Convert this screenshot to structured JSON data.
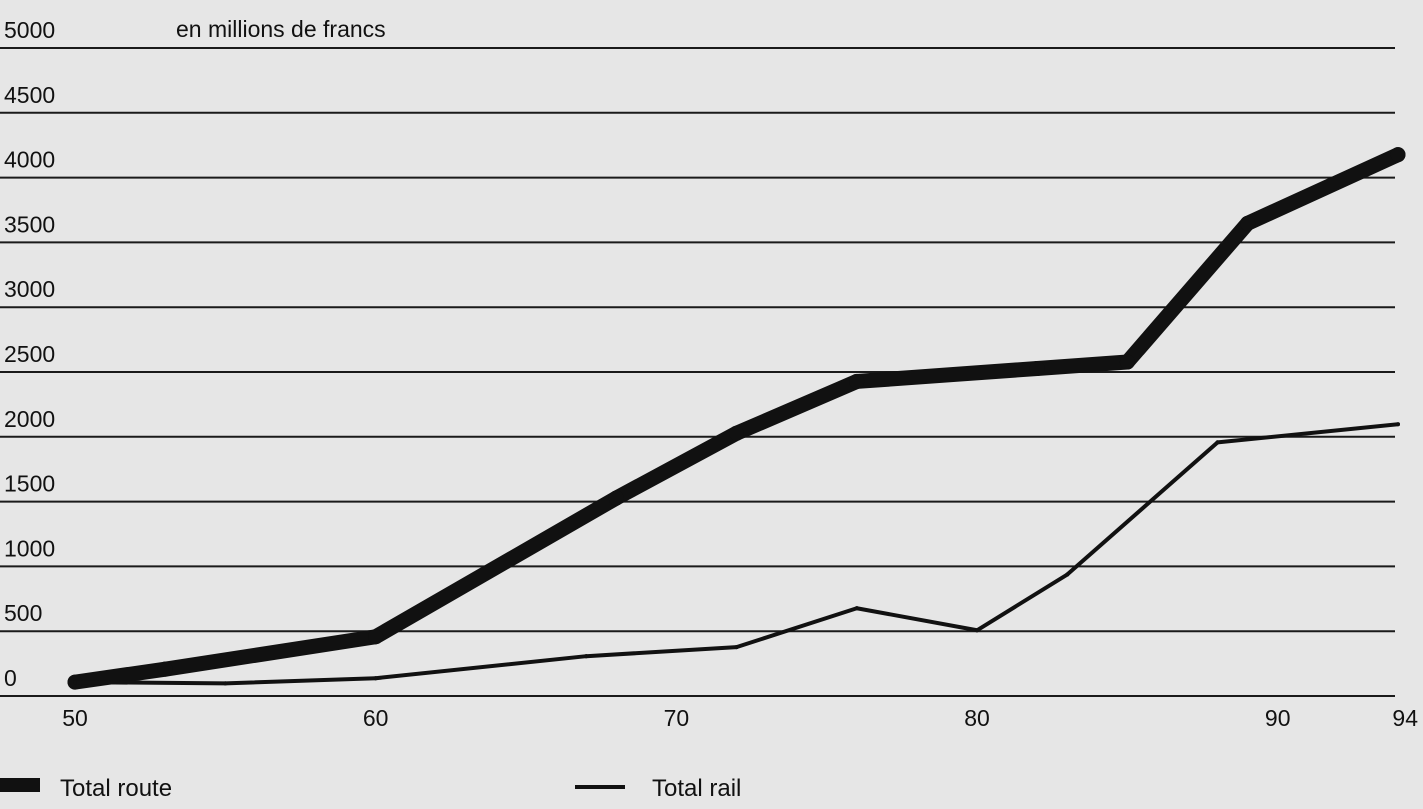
{
  "chart_data": {
    "type": "line",
    "unit_label": "en millions de francs",
    "x_ticks": [
      50,
      60,
      70,
      80,
      90,
      94
    ],
    "y_ticks": [
      0,
      500,
      1000,
      1500,
      2000,
      2500,
      3000,
      3500,
      4000,
      4500,
      5000
    ],
    "xlim": [
      50,
      94
    ],
    "ylim": [
      0,
      5000
    ],
    "grid": "horizontal",
    "legend": {
      "placement": "bottom",
      "entries": [
        "Total route",
        "Total rail"
      ]
    },
    "series": [
      {
        "name": "Total route",
        "color": "#111111",
        "style": "thick",
        "x": [
          50,
          53,
          60,
          68,
          72,
          76,
          82,
          85,
          89,
          94
        ],
        "y": [
          30,
          130,
          380,
          1450,
          1950,
          2350,
          2450,
          2500,
          3570,
          4100
        ]
      },
      {
        "name": "Total rail",
        "color": "#111111",
        "style": "thin",
        "x": [
          50,
          55,
          60,
          67,
          72,
          76,
          80,
          83,
          88,
          94
        ],
        "y": [
          30,
          20,
          60,
          230,
          300,
          600,
          430,
          860,
          1880,
          2020
        ]
      }
    ]
  }
}
